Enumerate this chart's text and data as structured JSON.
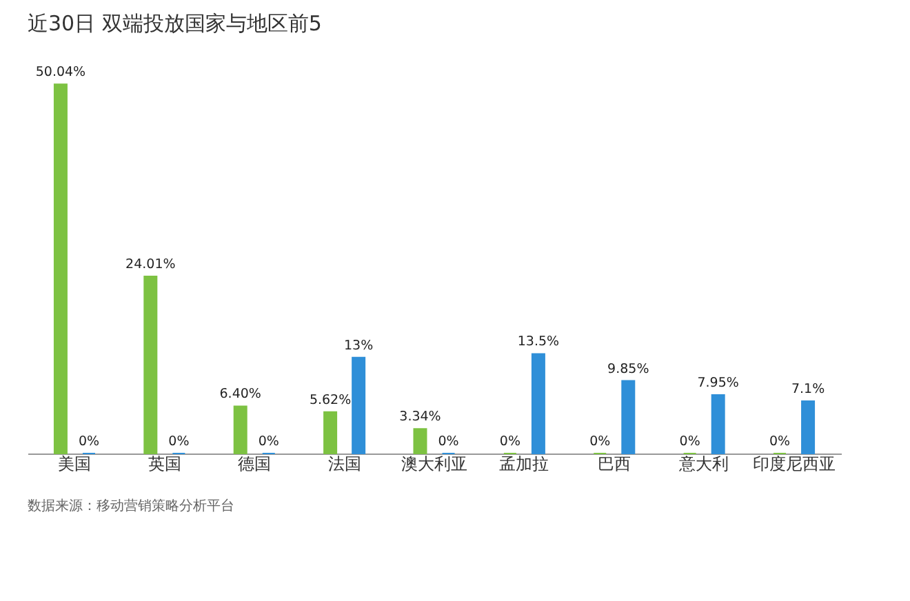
{
  "chart_data": {
    "type": "bar",
    "title": "近30日 双端投放国家与地区前5",
    "categories": [
      "美国",
      "英国",
      "德国",
      "法国",
      "澳大利亚",
      "孟加拉",
      "巴西",
      "意大利",
      "印度尼西亚"
    ],
    "series": [
      {
        "color": "#7dc242",
        "values": [
          50.04,
          24.01,
          6.4,
          5.62,
          3.34,
          0,
          0,
          0,
          0
        ],
        "value_labels": [
          "50.04%",
          "24.01%",
          "6.40%",
          "5.62%",
          "3.34%",
          "0%",
          "0%",
          "0%",
          "0%"
        ]
      },
      {
        "color": "#2f8fd8",
        "values": [
          0,
          0,
          0,
          13,
          0,
          13.5,
          9.85,
          7.95,
          7.1
        ],
        "value_labels": [
          "0%",
          "0%",
          "0%",
          "13%",
          "0%",
          "13.5%",
          "9.85%",
          "7.95%",
          "7.1%"
        ]
      }
    ],
    "tick_labels": "x",
    "legend": false,
    "grid": false,
    "annotations": [
      "数据来源：移动营销策略分析平台"
    ]
  }
}
